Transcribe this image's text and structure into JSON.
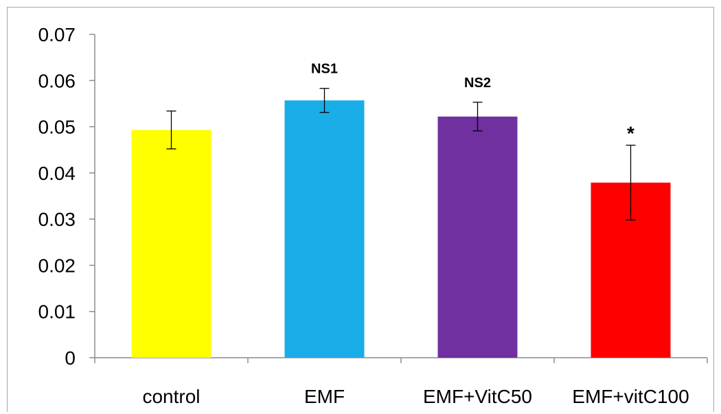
{
  "chart_data": {
    "type": "bar",
    "title": "",
    "xlabel": "",
    "ylabel": "",
    "categories": [
      "control",
      "EMF",
      "EMF+VitC50",
      "EMF+vitC100"
    ],
    "values": [
      0.0493,
      0.0557,
      0.0522,
      0.0379
    ],
    "error": [
      0.0041,
      0.0026,
      0.0031,
      0.0081
    ],
    "colors": [
      "#ffff00",
      "#1aaee8",
      "#7030a0",
      "#ff0000"
    ],
    "annotations": [
      "",
      "NS1",
      "NS2",
      "*"
    ],
    "ylim": [
      0,
      0.07
    ],
    "yticks": [
      "0",
      "0.01",
      "0.02",
      "0.03",
      "0.04",
      "0.05",
      "0.06",
      "0.07"
    ],
    "grid": false,
    "legend": "none"
  }
}
